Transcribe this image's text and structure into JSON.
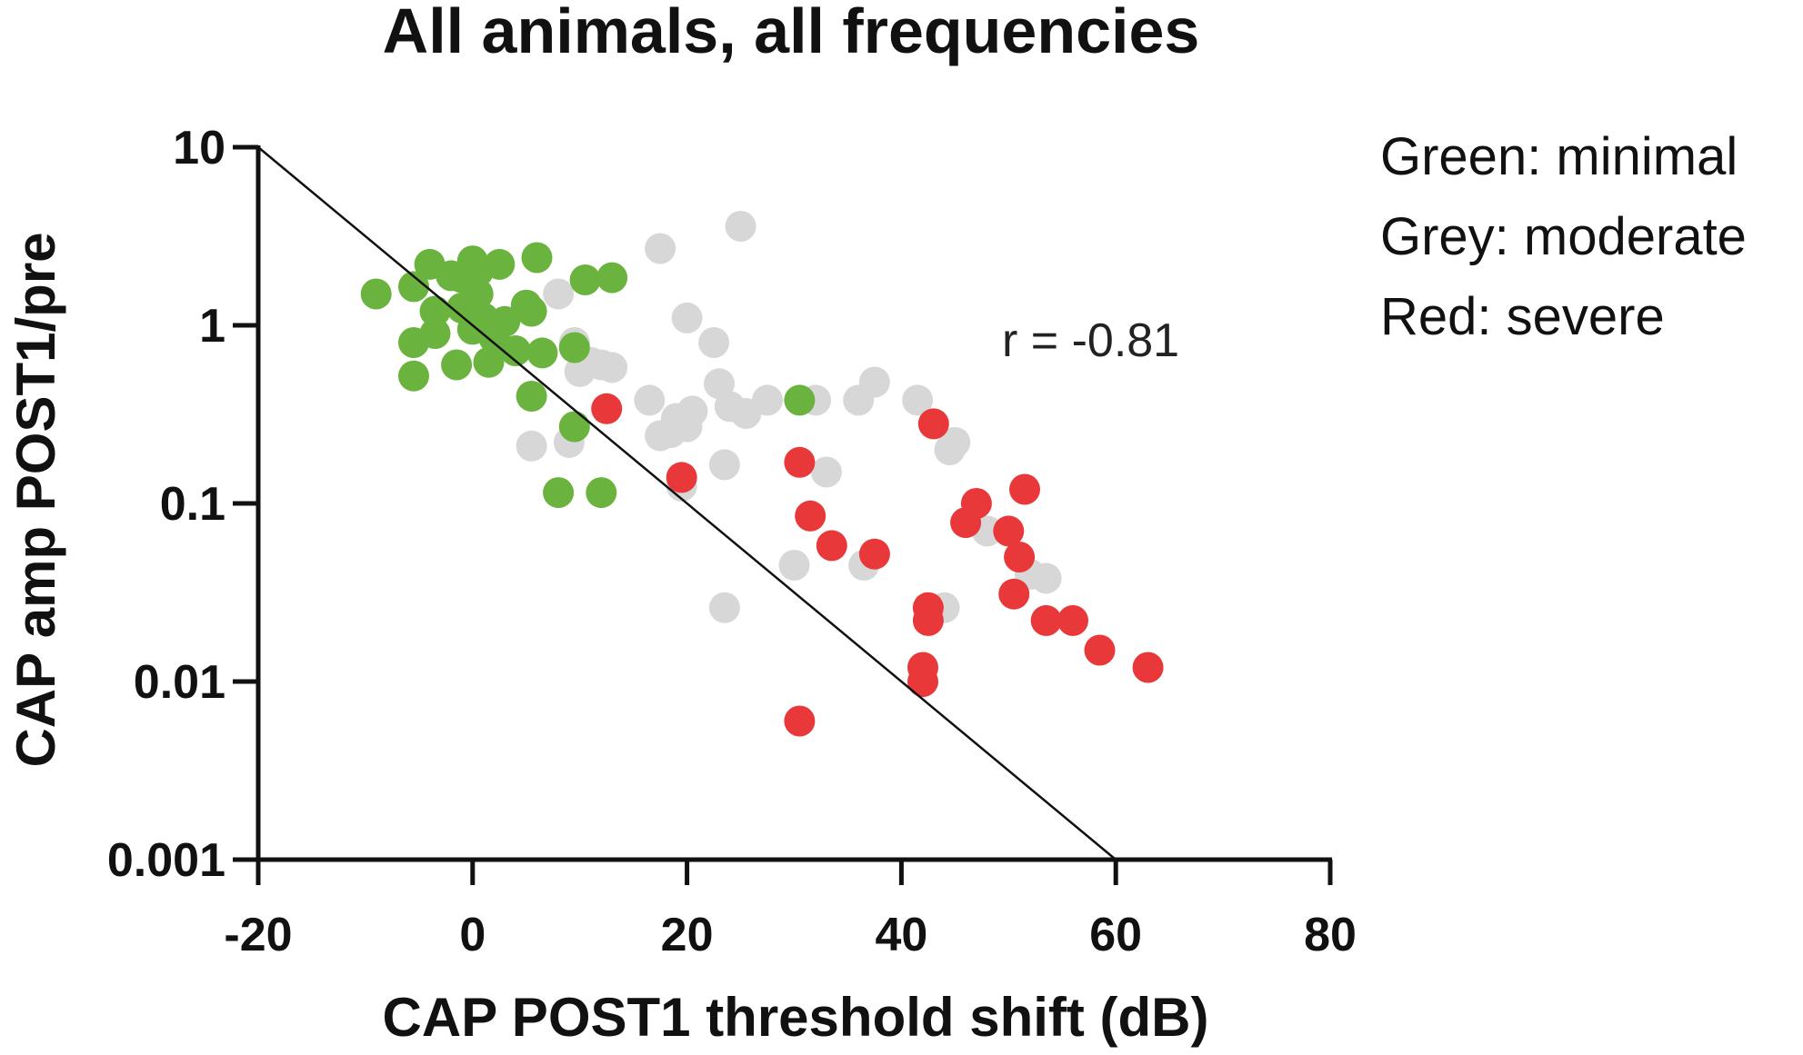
{
  "chart_data": {
    "type": "scatter",
    "title": "All animals, all frequencies",
    "xlabel": "CAP POST1 threshold shift (dB)",
    "ylabel": "CAP amp POST1/pre",
    "xlim": [
      -20,
      80
    ],
    "ylim": [
      0.001,
      10
    ],
    "yscale": "log",
    "x_ticks": [
      -20,
      0,
      20,
      40,
      60,
      80
    ],
    "x_tick_labels": [
      "-20",
      "0",
      "20",
      "40",
      "60",
      "80"
    ],
    "y_ticks": [
      0.001,
      0.01,
      0.1,
      1,
      10
    ],
    "y_tick_labels": [
      "0.001",
      "0.01",
      "0.1",
      "1",
      "10"
    ],
    "annotation": "r = -0.81",
    "legend": [
      "Green: minimal",
      "Grey: moderate",
      "Red: severe"
    ],
    "colors": {
      "Green": "#6ab33e",
      "Grey": "#d7d7d7",
      "Red": "#e8383a"
    },
    "reference_line": {
      "x": [
        -20,
        60
      ],
      "y": [
        10,
        0.001
      ]
    },
    "series": [
      {
        "name": "Grey",
        "color": "#d7d7d7",
        "points": [
          [
            25,
            3.6
          ],
          [
            17.5,
            2.7
          ],
          [
            20,
            1.1
          ],
          [
            22.5,
            0.8
          ],
          [
            23,
            0.47
          ],
          [
            8,
            1.5
          ],
          [
            9.5,
            0.8
          ],
          [
            10,
            0.55
          ],
          [
            12,
            0.6
          ],
          [
            13,
            0.58
          ],
          [
            11,
            0.62
          ],
          [
            16.5,
            0.38
          ],
          [
            19,
            0.3
          ],
          [
            20.5,
            0.33
          ],
          [
            24,
            0.35
          ],
          [
            25.5,
            0.32
          ],
          [
            18.5,
            0.25
          ],
          [
            17.5,
            0.24
          ],
          [
            20,
            0.27
          ],
          [
            23.5,
            0.165
          ],
          [
            19.5,
            0.125
          ],
          [
            27.5,
            0.38
          ],
          [
            32,
            0.38
          ],
          [
            36,
            0.38
          ],
          [
            37.5,
            0.48
          ],
          [
            41.5,
            0.38
          ],
          [
            44.5,
            0.2
          ],
          [
            45,
            0.22
          ],
          [
            33,
            0.15
          ],
          [
            30,
            0.045
          ],
          [
            36.5,
            0.045
          ],
          [
            23.5,
            0.026
          ],
          [
            44,
            0.026
          ],
          [
            48,
            0.07
          ],
          [
            52,
            0.04
          ],
          [
            53.5,
            0.038
          ],
          [
            5.5,
            0.21
          ],
          [
            9,
            0.22
          ]
        ]
      },
      {
        "name": "Green",
        "color": "#6ab33e",
        "points": [
          [
            -9,
            1.5
          ],
          [
            -5.5,
            1.65
          ],
          [
            -4,
            2.2
          ],
          [
            -2,
            1.9
          ],
          [
            -1,
            1.85
          ],
          [
            0,
            2.3
          ],
          [
            0.5,
            2.0
          ],
          [
            2.5,
            2.2
          ],
          [
            6,
            2.4
          ],
          [
            -3.5,
            1.2
          ],
          [
            -1,
            1.25
          ],
          [
            0.5,
            1.5
          ],
          [
            1,
            1.1
          ],
          [
            3,
            1.05
          ],
          [
            5,
            1.3
          ],
          [
            5.5,
            1.2
          ],
          [
            -5.5,
            0.8
          ],
          [
            -3.5,
            0.9
          ],
          [
            0,
            0.95
          ],
          [
            2,
            0.85
          ],
          [
            4,
            0.72
          ],
          [
            6.5,
            0.7
          ],
          [
            -5.5,
            0.52
          ],
          [
            -1.5,
            0.6
          ],
          [
            1.5,
            0.62
          ],
          [
            5.5,
            0.4
          ],
          [
            9.5,
            0.75
          ],
          [
            9.5,
            0.27
          ],
          [
            10.5,
            1.8
          ],
          [
            13,
            1.85
          ],
          [
            30.5,
            0.38
          ],
          [
            8,
            0.115
          ],
          [
            12,
            0.115
          ]
        ]
      },
      {
        "name": "Red",
        "color": "#e8383a",
        "points": [
          [
            12.5,
            0.34
          ],
          [
            19.5,
            0.14
          ],
          [
            30.5,
            0.17
          ],
          [
            31.5,
            0.085
          ],
          [
            33.5,
            0.058
          ],
          [
            37.5,
            0.052
          ],
          [
            43,
            0.28
          ],
          [
            47,
            0.1
          ],
          [
            46,
            0.078
          ],
          [
            50,
            0.07
          ],
          [
            51.5,
            0.12
          ],
          [
            51,
            0.05
          ],
          [
            50.5,
            0.031
          ],
          [
            53.5,
            0.022
          ],
          [
            56,
            0.022
          ],
          [
            58.5,
            0.015
          ],
          [
            63,
            0.012
          ],
          [
            42.5,
            0.026
          ],
          [
            42.5,
            0.022
          ],
          [
            42,
            0.012
          ],
          [
            42,
            0.01
          ],
          [
            30.5,
            0.006
          ]
        ]
      }
    ]
  }
}
